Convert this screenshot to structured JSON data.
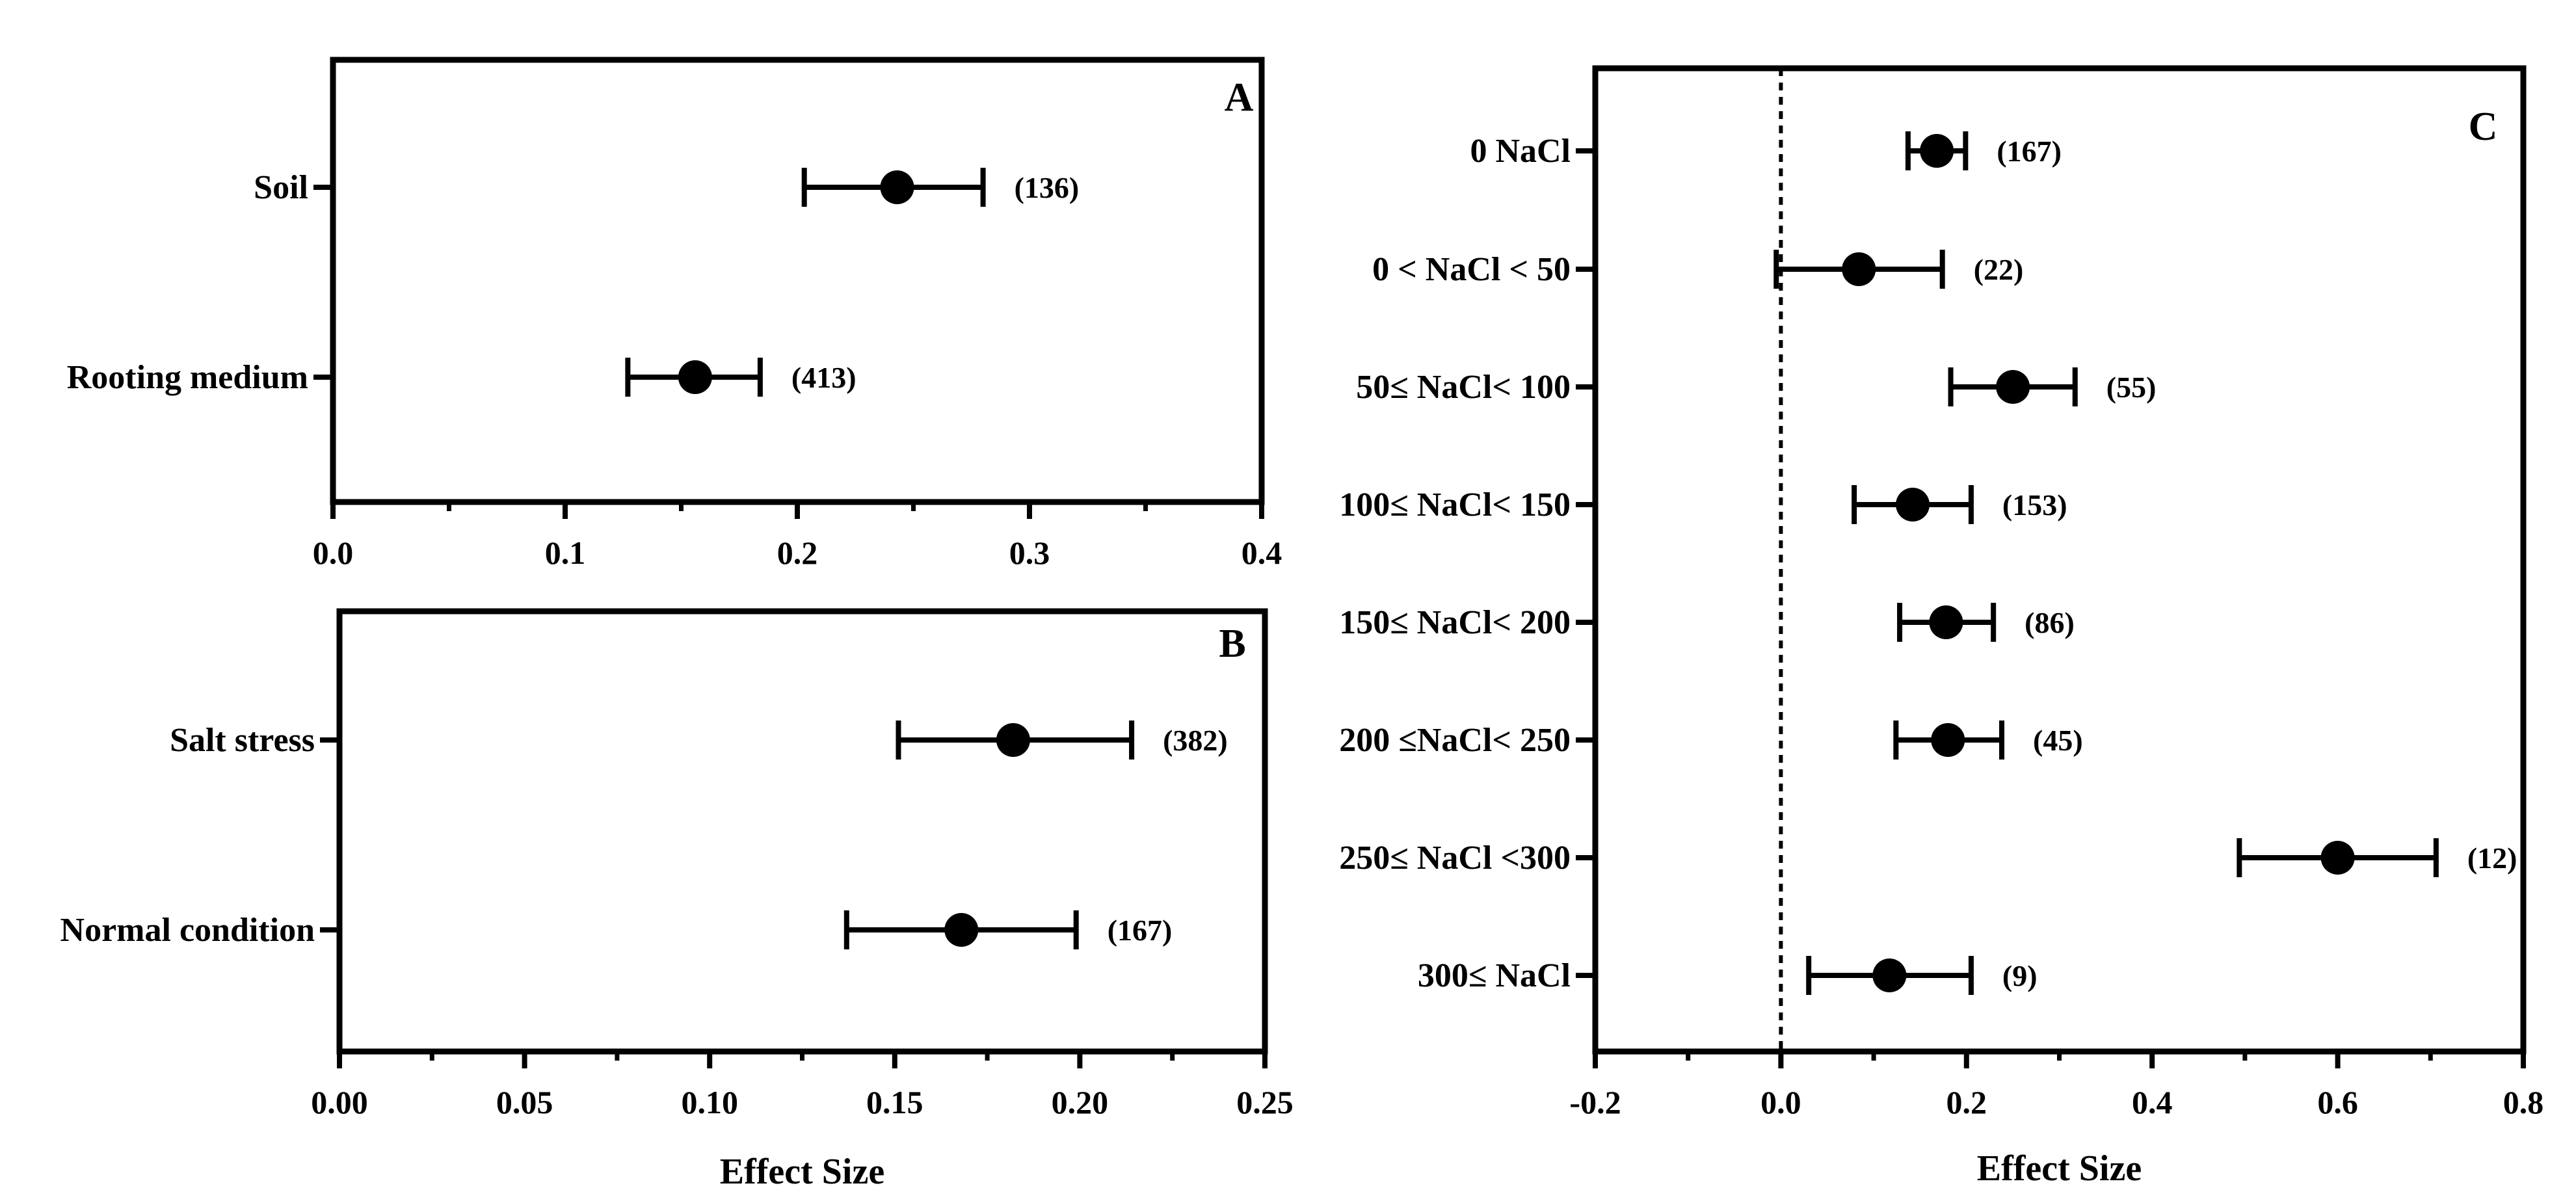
{
  "chart_data": [
    {
      "type": "scatter",
      "panel": "A",
      "orientation": "horizontal",
      "xlabel": "",
      "xlim": [
        0,
        0.4
      ],
      "xticks": [
        "0.0",
        "0.1",
        "0.2",
        "0.3",
        "0.4"
      ],
      "categories": [
        "Soil",
        "Rooting medium"
      ],
      "points": [
        {
          "label": "Soil",
          "value": 0.243,
          "ci": [
            0.203,
            0.28
          ],
          "n": "(136)"
        },
        {
          "label": "Rooting medium",
          "value": 0.156,
          "ci": [
            0.127,
            0.184
          ],
          "n": "(413)"
        }
      ]
    },
    {
      "type": "scatter",
      "panel": "B",
      "orientation": "horizontal",
      "xlabel": "Effect Size",
      "xlim": [
        0,
        0.25
      ],
      "xticks": [
        "0.00",
        "0.05",
        "0.10",
        "0.15",
        "0.20",
        "0.25"
      ],
      "categories": [
        "Salt stress",
        "Normal condition"
      ],
      "points": [
        {
          "label": "Salt stress",
          "value": 0.182,
          "ci": [
            0.151,
            0.214
          ],
          "n": "(382)"
        },
        {
          "label": "Normal condition",
          "value": 0.168,
          "ci": [
            0.137,
            0.199
          ],
          "n": "(167)"
        }
      ]
    },
    {
      "type": "scatter",
      "panel": "C",
      "orientation": "horizontal",
      "xlabel": "Effect Size",
      "xlim": [
        -0.2,
        0.8
      ],
      "xticks": [
        "-0.2",
        "0.0",
        "0.2",
        "0.4",
        "0.6",
        "0.8"
      ],
      "reference_line": 0,
      "categories": [
        "0 NaCl",
        "0 < NaCl < 50",
        "50≤ NaCl< 100",
        "100≤ NaCl< 150",
        "150≤ NaCl< 200",
        "200 ≤NaCl< 250",
        "250≤ NaCl <300",
        "300≤ NaCl"
      ],
      "points": [
        {
          "label": "0 NaCl",
          "value": 0.168,
          "ci": [
            0.137,
            0.199
          ],
          "n": "(167)"
        },
        {
          "label": "0 < NaCl < 50",
          "value": 0.084,
          "ci": [
            -0.005,
            0.174
          ],
          "n": "(22)"
        },
        {
          "label": "50≤ NaCl< 100",
          "value": 0.25,
          "ci": [
            0.183,
            0.317
          ],
          "n": "(55)"
        },
        {
          "label": "100≤ NaCl< 150",
          "value": 0.142,
          "ci": [
            0.079,
            0.205
          ],
          "n": "(153)"
        },
        {
          "label": "150≤ NaCl< 200",
          "value": 0.178,
          "ci": [
            0.128,
            0.229
          ],
          "n": "(86)"
        },
        {
          "label": "200 ≤NaCl< 250",
          "value": 0.18,
          "ci": [
            0.124,
            0.238
          ],
          "n": "(45)"
        },
        {
          "label": "250≤ NaCl <300",
          "value": 0.6,
          "ci": [
            0.494,
            0.706
          ],
          "n": "(12)"
        },
        {
          "label": "300≤ NaCl",
          "value": 0.117,
          "ci": [
            0.03,
            0.205
          ],
          "n": "(9)"
        }
      ]
    }
  ],
  "colors": {
    "ink": "#000000",
    "background": "#ffffff"
  }
}
